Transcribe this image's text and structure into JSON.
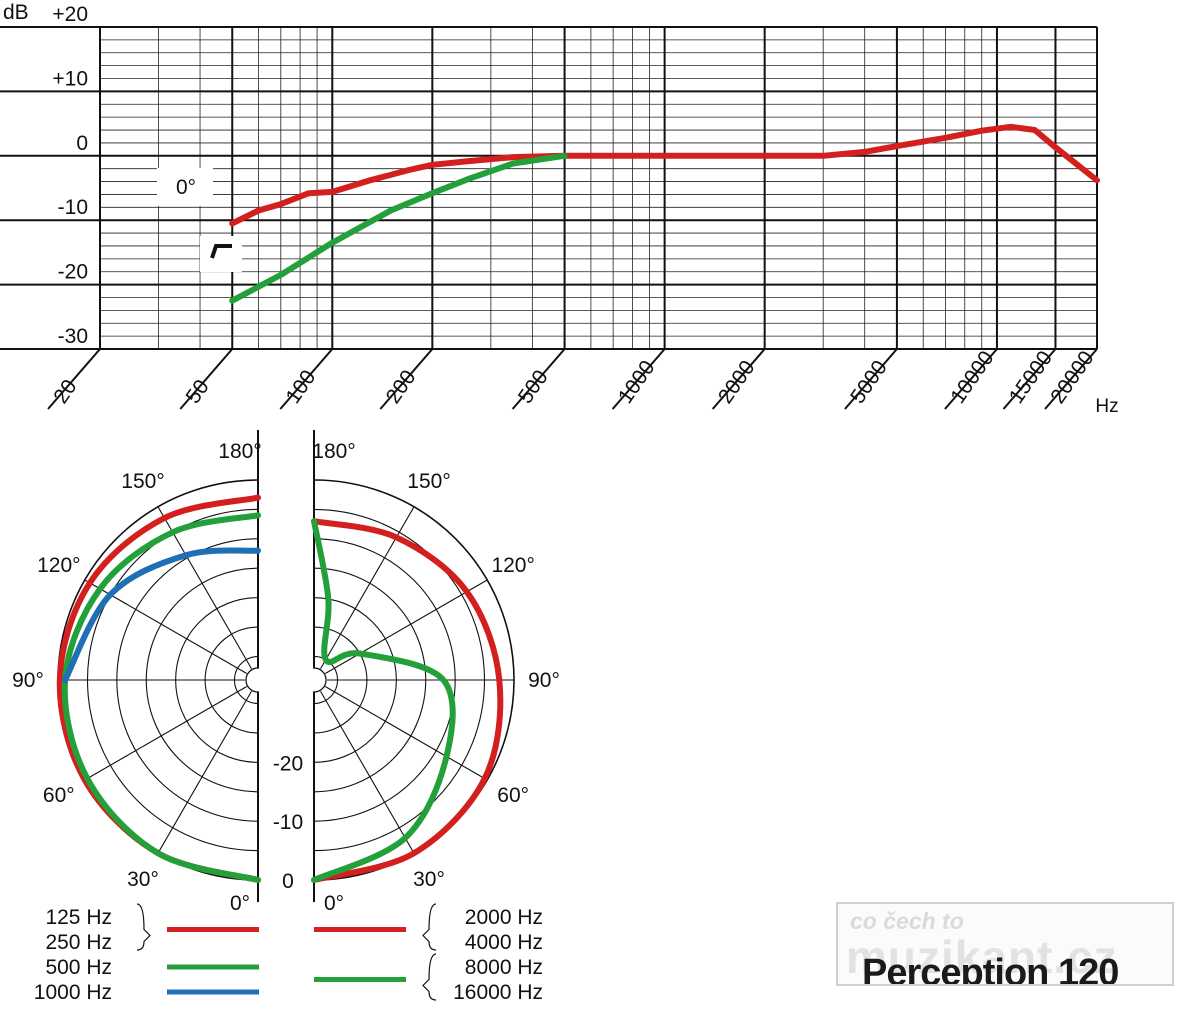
{
  "chart_data": [
    {
      "type": "line",
      "title": "",
      "x_scale": "log",
      "x_range_hz": [
        20,
        20000
      ],
      "x_ticks": [
        20,
        50,
        100,
        200,
        500,
        1000,
        2000,
        5000,
        10000,
        15000,
        20000
      ],
      "x_tick_labels": [
        "20",
        "50",
        "100",
        "200",
        "500",
        "1000",
        "2000",
        "5000",
        "10000",
        "15000",
        "20000"
      ],
      "x_unit": "Hz",
      "y_unit": "dB",
      "y_range": [
        -30,
        20
      ],
      "y_ticks": [
        20,
        10,
        0,
        -10,
        -20,
        -30
      ],
      "y_tick_labels": [
        "+20",
        "+10",
        "0",
        "-10",
        "-20",
        "-30"
      ],
      "grid": true,
      "annotations": [
        "0°"
      ],
      "series": [
        {
          "color": "#d41f1f",
          "x": [
            50,
            60,
            70,
            85,
            100,
            130,
            170,
            200,
            260,
            350,
            500,
            700,
            1000,
            2000,
            3000,
            4000,
            5000,
            7000,
            9000,
            11000,
            13000,
            15000,
            20000
          ],
          "y": [
            -10.5,
            -8.5,
            -7.5,
            -5.8,
            -5.6,
            -3.8,
            -2.2,
            -1.4,
            -0.8,
            -0.2,
            0,
            0,
            0,
            0,
            0,
            0.6,
            1.5,
            2.8,
            3.9,
            4.5,
            4.0,
            1.3,
            -3.8
          ]
        },
        {
          "color": "#23a03a",
          "x": [
            50,
            70,
            100,
            150,
            200,
            260,
            350,
            500
          ],
          "y": [
            -22.5,
            -18.5,
            -13.5,
            -8.5,
            -5.8,
            -3.5,
            -1.2,
            0
          ]
        }
      ]
    },
    {
      "type": "polar",
      "title": "",
      "angle_labels": [
        "0°",
        "30°",
        "60°",
        "90°",
        "120°",
        "150°",
        "180°"
      ],
      "radial_labels": [
        "-20",
        "-10",
        "0"
      ],
      "legend_left": [
        {
          "labels": [
            "125 Hz",
            "250 Hz"
          ],
          "color": "#d41f1f"
        },
        {
          "labels": [
            "500 Hz"
          ],
          "color": "#23a03a"
        },
        {
          "labels": [
            "1000 Hz"
          ],
          "color": "#1f6fb4"
        }
      ],
      "legend_right": [
        {
          "labels": [
            "2000 Hz",
            "4000 Hz"
          ],
          "color": "#d41f1f"
        },
        {
          "labels": [
            "8000 Hz",
            "16000 Hz"
          ],
          "color": "#23a03a"
        }
      ],
      "series": [
        {
          "side": "left",
          "labels": [
            "125 Hz",
            "250 Hz"
          ],
          "color": "#d41f1f",
          "angles_deg": [
            0,
            30,
            60,
            90,
            120,
            150,
            180
          ],
          "level_db": [
            0,
            0,
            0,
            -0.3,
            -1.0,
            -2.2,
            -3.0
          ]
        },
        {
          "side": "left",
          "labels": [
            "500 Hz"
          ],
          "color": "#23a03a",
          "angles_deg": [
            0,
            30,
            60,
            90,
            120,
            150,
            180
          ],
          "level_db": [
            0,
            0,
            -0.5,
            -1.2,
            -3.0,
            -5.0,
            -6.0
          ]
        },
        {
          "side": "left",
          "labels": [
            "1000 Hz"
          ],
          "color": "#1f6fb4",
          "angles_deg": [
            0,
            30,
            60,
            90,
            120,
            150,
            180
          ],
          "level_db": [
            null,
            null,
            null,
            -1.2,
            -5.0,
            -9.5,
            -12.0
          ]
        },
        {
          "side": "right",
          "labels": [
            "2000 Hz",
            "4000 Hz"
          ],
          "color": "#d41f1f",
          "angles_deg": [
            0,
            30,
            60,
            90,
            120,
            150,
            180
          ],
          "level_db": [
            0,
            0,
            -0.5,
            -2.5,
            -4.0,
            -6.0,
            -7.0
          ]
        },
        {
          "side": "right",
          "labels": [
            "8000 Hz",
            "16000 Hz"
          ],
          "color": "#23a03a",
          "angles_deg": [
            0,
            30,
            60,
            90,
            120,
            150,
            170,
            180
          ],
          "level_db": [
            0,
            -3.0,
            -8.0,
            -12.0,
            -25.0,
            -30.0,
            -20.0,
            -7.0
          ]
        }
      ]
    }
  ],
  "watermark": {
    "line1": "co čech to",
    "line2": "muzikant.cz"
  },
  "model_name": "Perception 120"
}
